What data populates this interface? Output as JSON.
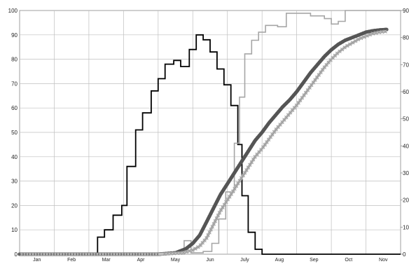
{
  "chart_data": {
    "type": "line",
    "title": "",
    "xlabel": "",
    "ylabel": "",
    "y2label": "",
    "ylim": [
      0,
      100
    ],
    "y2lim": [
      0,
      90
    ],
    "grid": true,
    "legend": "none",
    "categories": [
      "Jan",
      "Feb",
      "Mar",
      "Apr",
      "May",
      "Jun",
      "July",
      "Aug",
      "Sep",
      "Oct",
      "Nov"
    ],
    "y_ticks": [
      0,
      10,
      20,
      30,
      40,
      50,
      60,
      70,
      80,
      90,
      100
    ],
    "y2_ticks": [
      0,
      10,
      20,
      30,
      40,
      50,
      60,
      70,
      80,
      90
    ],
    "series": [
      {
        "axis": "left",
        "style": "step-black",
        "color": "#000000",
        "points": [
          [
            0,
            0
          ],
          [
            2.25,
            0
          ],
          [
            2.25,
            7
          ],
          [
            2.45,
            7
          ],
          [
            2.45,
            10
          ],
          [
            2.7,
            10
          ],
          [
            2.7,
            16
          ],
          [
            2.95,
            16
          ],
          [
            2.95,
            20
          ],
          [
            3.1,
            20
          ],
          [
            3.1,
            36
          ],
          [
            3.35,
            36
          ],
          [
            3.35,
            51
          ],
          [
            3.55,
            51
          ],
          [
            3.55,
            58
          ],
          [
            3.8,
            58
          ],
          [
            3.8,
            67
          ],
          [
            4.0,
            67
          ],
          [
            4.0,
            72
          ],
          [
            4.2,
            72
          ],
          [
            4.2,
            78
          ],
          [
            4.45,
            78
          ],
          [
            4.45,
            79.5
          ],
          [
            4.65,
            79.5
          ],
          [
            4.65,
            77
          ],
          [
            4.9,
            77
          ],
          [
            4.9,
            84
          ],
          [
            5.1,
            84
          ],
          [
            5.1,
            90
          ],
          [
            5.3,
            90
          ],
          [
            5.3,
            88
          ],
          [
            5.5,
            88
          ],
          [
            5.5,
            83
          ],
          [
            5.7,
            83
          ],
          [
            5.7,
            76
          ],
          [
            5.9,
            76
          ],
          [
            5.9,
            69.5
          ],
          [
            6.1,
            69.5
          ],
          [
            6.1,
            61
          ],
          [
            6.3,
            61
          ],
          [
            6.3,
            45
          ],
          [
            6.42,
            45
          ],
          [
            6.42,
            24
          ],
          [
            6.6,
            24
          ],
          [
            6.6,
            9
          ],
          [
            6.8,
            9
          ],
          [
            6.8,
            2
          ],
          [
            7.0,
            2
          ],
          [
            7.0,
            0
          ],
          [
            11,
            0
          ]
        ]
      },
      {
        "axis": "right",
        "style": "step-gray",
        "color": "#a6a6a6",
        "points": [
          [
            0,
            0
          ],
          [
            4.75,
            0
          ],
          [
            4.75,
            5
          ],
          [
            4.95,
            5
          ],
          [
            4.95,
            0.5
          ],
          [
            5.3,
            0.5
          ],
          [
            5.3,
            1
          ],
          [
            5.55,
            1
          ],
          [
            5.55,
            4
          ],
          [
            5.75,
            4
          ],
          [
            5.75,
            13
          ],
          [
            5.95,
            13
          ],
          [
            5.95,
            23
          ],
          [
            6.2,
            23
          ],
          [
            6.2,
            41
          ],
          [
            6.35,
            41
          ],
          [
            6.35,
            58
          ],
          [
            6.5,
            58
          ],
          [
            6.5,
            74
          ],
          [
            6.7,
            74
          ],
          [
            6.7,
            79
          ],
          [
            6.9,
            79
          ],
          [
            6.9,
            82
          ],
          [
            7.1,
            82
          ],
          [
            7.1,
            84.5
          ],
          [
            7.45,
            84.5
          ],
          [
            7.45,
            84
          ],
          [
            7.7,
            84
          ],
          [
            7.7,
            89
          ],
          [
            8.4,
            89
          ],
          [
            8.4,
            88
          ],
          [
            8.8,
            88
          ],
          [
            8.8,
            87
          ],
          [
            9.0,
            87
          ],
          [
            9.0,
            85
          ],
          [
            9.2,
            85
          ],
          [
            9.2,
            86
          ],
          [
            9.4,
            86
          ],
          [
            9.4,
            90
          ],
          [
            11,
            90
          ]
        ]
      },
      {
        "axis": "right",
        "style": "thick-dark",
        "color": "#666666",
        "points": [
          [
            0,
            0
          ],
          [
            4.0,
            0
          ],
          [
            4.5,
            0.5
          ],
          [
            4.8,
            2
          ],
          [
            5.0,
            4
          ],
          [
            5.2,
            7
          ],
          [
            5.4,
            12
          ],
          [
            5.6,
            17
          ],
          [
            5.8,
            22
          ],
          [
            6.0,
            26
          ],
          [
            6.2,
            30
          ],
          [
            6.4,
            34
          ],
          [
            6.6,
            38
          ],
          [
            6.8,
            42
          ],
          [
            7.0,
            45
          ],
          [
            7.2,
            48.5
          ],
          [
            7.4,
            51.5
          ],
          [
            7.6,
            54.5
          ],
          [
            7.8,
            57
          ],
          [
            8.0,
            60
          ],
          [
            8.2,
            63.5
          ],
          [
            8.4,
            67
          ],
          [
            8.6,
            70
          ],
          [
            8.8,
            73
          ],
          [
            9.0,
            75.5
          ],
          [
            9.2,
            77.5
          ],
          [
            9.4,
            79
          ],
          [
            9.6,
            80
          ],
          [
            9.8,
            81
          ],
          [
            10.0,
            82
          ],
          [
            10.2,
            82.5
          ],
          [
            10.4,
            82.8
          ],
          [
            10.6,
            83
          ]
        ]
      },
      {
        "axis": "right",
        "style": "light-markers",
        "color": "#c0c0c0",
        "points": [
          [
            0,
            0
          ],
          [
            4.0,
            0
          ],
          [
            4.7,
            0.5
          ],
          [
            5.0,
            1.5
          ],
          [
            5.2,
            3
          ],
          [
            5.4,
            6
          ],
          [
            5.6,
            11
          ],
          [
            5.8,
            16
          ],
          [
            6.0,
            20
          ],
          [
            6.2,
            24
          ],
          [
            6.4,
            28
          ],
          [
            6.6,
            32
          ],
          [
            6.8,
            36
          ],
          [
            7.0,
            39
          ],
          [
            7.2,
            42.5
          ],
          [
            7.4,
            46
          ],
          [
            7.6,
            49
          ],
          [
            7.8,
            52
          ],
          [
            8.0,
            55
          ],
          [
            8.2,
            58.5
          ],
          [
            8.4,
            62
          ],
          [
            8.6,
            65.5
          ],
          [
            8.8,
            69
          ],
          [
            9.0,
            72
          ],
          [
            9.2,
            74.5
          ],
          [
            9.4,
            76.5
          ],
          [
            9.6,
            78
          ],
          [
            9.8,
            79.5
          ],
          [
            10.0,
            80.5
          ],
          [
            10.2,
            81.5
          ],
          [
            10.4,
            82
          ],
          [
            10.6,
            82.3
          ]
        ]
      }
    ]
  }
}
